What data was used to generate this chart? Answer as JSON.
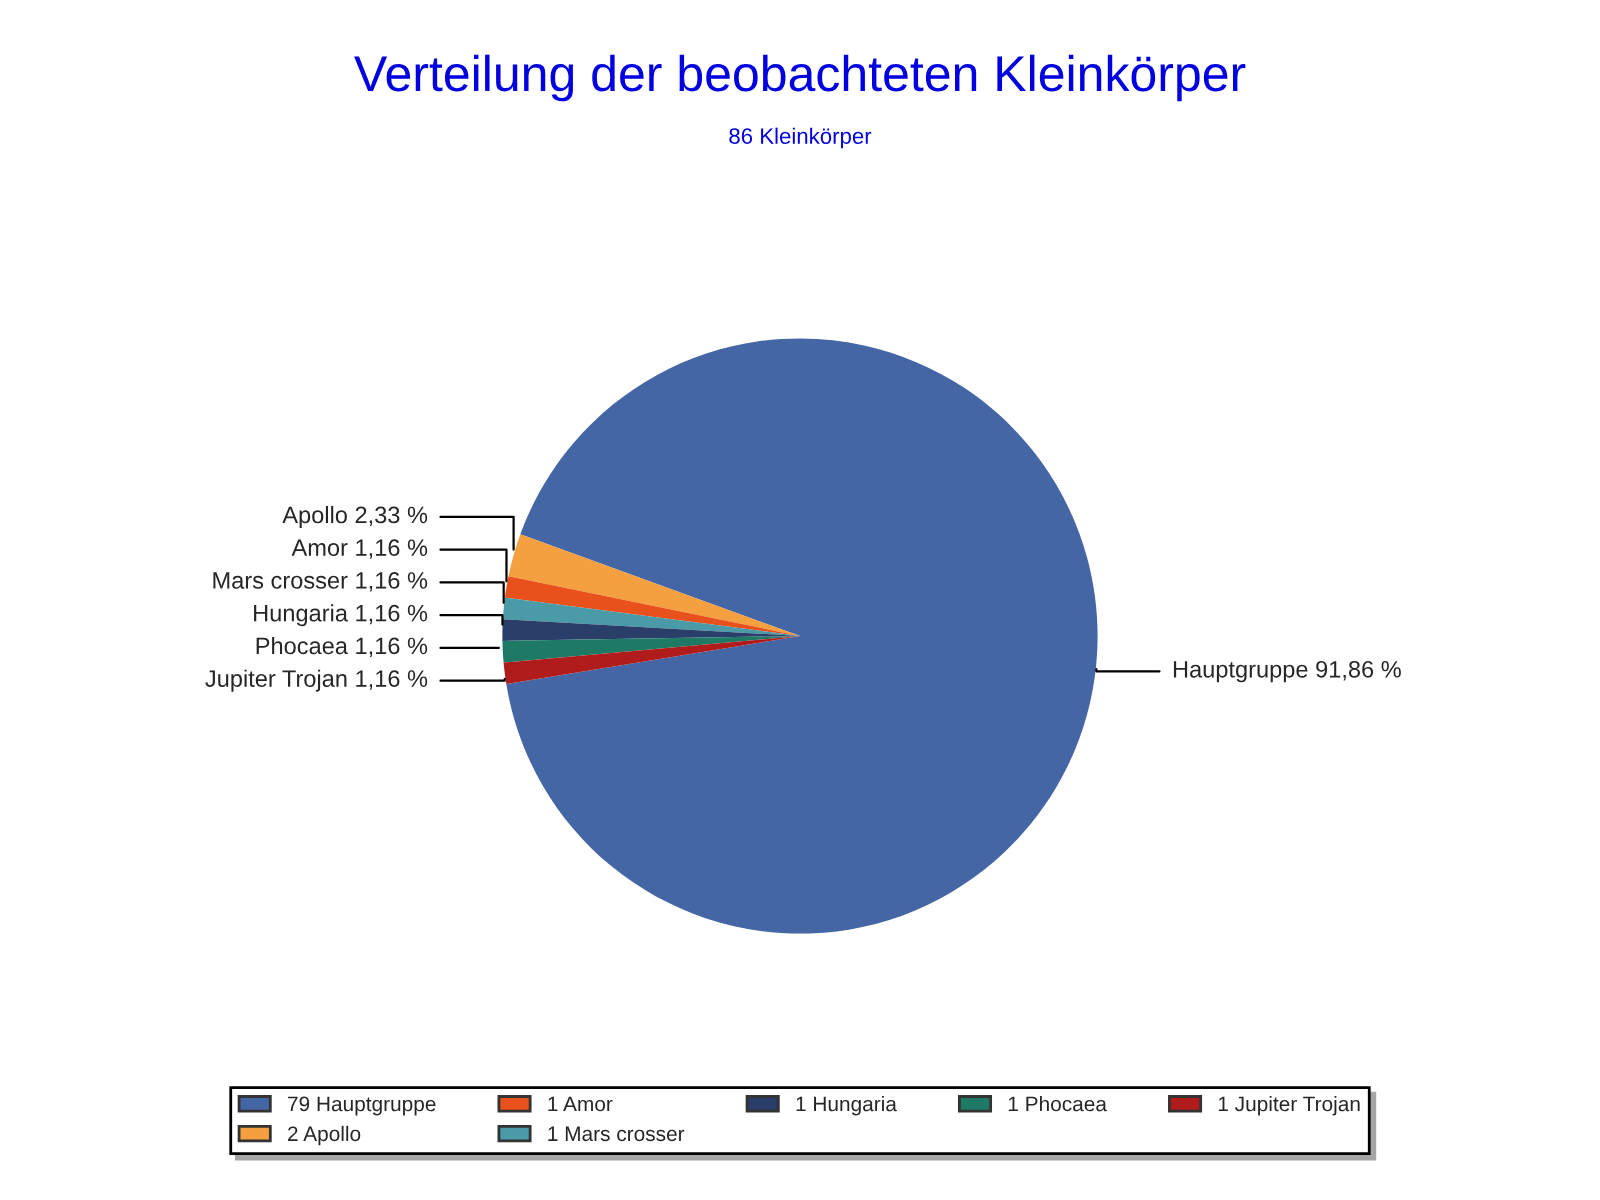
{
  "chart_data": {
    "type": "pie",
    "title": "Verteilung der beobachteten Kleinkörper",
    "subtitle": "86 Kleinkörper",
    "categories": [
      "79 Hauptgruppe",
      "2 Apollo",
      "1 Amor",
      "1 Mars crosser",
      "1 Hungaria",
      "1 Phocaea",
      "1 Jupiter Trojan"
    ],
    "values": [
      91.86,
      2.33,
      1.16,
      1.16,
      1.16,
      1.16,
      1.16
    ],
    "value_labels": [
      "Hauptgruppe 91,86 %",
      "Apollo 2,33 %",
      "Amor 1,16 %",
      "Mars crosser 1,16 %",
      "Hungaria 1,16 %",
      "Phocaea 1,16 %",
      "Jupiter Trojan 1,16 %"
    ],
    "colors": [
      "#4466a4",
      "#f4a040",
      "#e8501c",
      "#4a9aa8",
      "#2a3e6a",
      "#1e7a64",
      "#b01c1c"
    ],
    "legend": "bottom"
  }
}
